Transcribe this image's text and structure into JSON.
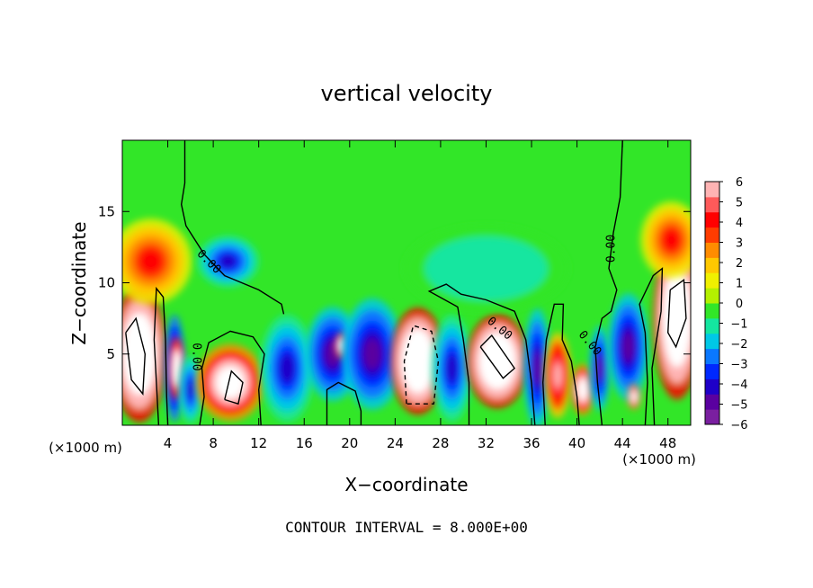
{
  "chart_data": {
    "type": "heatmap",
    "title": "vertical velocity",
    "xlabel": "X−coordinate",
    "ylabel": "Z−coordinate",
    "x_unit_left": "(×1000 m)",
    "x_unit_right": "(×1000 m)",
    "xlim": [
      0,
      50
    ],
    "ylim": [
      0,
      20
    ],
    "x_ticks": [
      4,
      8,
      12,
      16,
      20,
      24,
      28,
      32,
      36,
      40,
      44,
      48
    ],
    "y_ticks": [
      5,
      10,
      15
    ],
    "colorbar": {
      "range": [
        -6,
        6
      ],
      "ticks": [
        "6",
        "5",
        "4",
        "3",
        "2",
        "1",
        "0",
        "−1",
        "−2",
        "−3",
        "−4",
        "−5",
        "−6"
      ],
      "colors": [
        "#7a1fa0",
        "#5a00a0",
        "#1e00c8",
        "#0028ff",
        "#0a78ff",
        "#00c8e6",
        "#14e6a0",
        "#32e628",
        "#b4f000",
        "#f0f000",
        "#ffc800",
        "#ff8c00",
        "#ff3c00",
        "#ff0000",
        "#ff5a5a",
        "#ffb4b4"
      ]
    },
    "contour_labels": [
      "0.00",
      "0.00",
      "0.00",
      "0.00",
      "0.00"
    ],
    "features": [
      {
        "x": 1.5,
        "z": 5.0,
        "sx": 1.6,
        "sz": 3.2,
        "w": 12
      },
      {
        "x": 2.5,
        "z": 11.5,
        "sx": 2.4,
        "sz": 2.0,
        "w": 4
      },
      {
        "x": 4.6,
        "z": 4.0,
        "sx": 0.6,
        "sz": 2.5,
        "w": -7
      },
      {
        "x": 4.8,
        "z": 4.0,
        "sx": 0.45,
        "sz": 1.4,
        "w": 10
      },
      {
        "x": 6.0,
        "z": 2.5,
        "sx": 0.7,
        "sz": 1.6,
        "w": -4
      },
      {
        "x": 9.5,
        "z": 3.0,
        "sx": 2.0,
        "sz": 1.8,
        "w": 8
      },
      {
        "x": 9.3,
        "z": 11.5,
        "sx": 1.8,
        "sz": 1.2,
        "w": -4
      },
      {
        "x": 14.5,
        "z": 4.0,
        "sx": 1.6,
        "sz": 2.5,
        "w": -4
      },
      {
        "x": 18.5,
        "z": 5.0,
        "sx": 1.6,
        "sz": 2.2,
        "w": -5
      },
      {
        "x": 19.3,
        "z": 5.6,
        "sx": 0.4,
        "sz": 0.6,
        "w": 8
      },
      {
        "x": 22.0,
        "z": 5.0,
        "sx": 1.8,
        "sz": 2.6,
        "w": -5
      },
      {
        "x": 26.0,
        "z": 4.5,
        "sx": 1.6,
        "sz": 2.5,
        "w": 11
      },
      {
        "x": 29.0,
        "z": 4.0,
        "sx": 1.2,
        "sz": 2.5,
        "w": -4
      },
      {
        "x": 33.0,
        "z": 4.5,
        "sx": 1.8,
        "sz": 2.2,
        "w": 11
      },
      {
        "x": 36.5,
        "z": 4.0,
        "sx": 0.8,
        "sz": 2.8,
        "w": -5
      },
      {
        "x": 38.3,
        "z": 3.5,
        "sx": 0.8,
        "sz": 2.0,
        "w": 6
      },
      {
        "x": 40.5,
        "z": 2.5,
        "sx": 0.7,
        "sz": 1.2,
        "w": 8
      },
      {
        "x": 42.0,
        "z": 4.0,
        "sx": 0.6,
        "sz": 2.0,
        "w": -5
      },
      {
        "x": 44.5,
        "z": 5.5,
        "sx": 1.2,
        "sz": 2.5,
        "w": -5
      },
      {
        "x": 45.0,
        "z": 2.0,
        "sx": 0.4,
        "sz": 0.6,
        "w": 8
      },
      {
        "x": 48.8,
        "z": 7.5,
        "sx": 1.4,
        "sz": 3.8,
        "w": 12
      },
      {
        "x": 48.3,
        "z": 13.0,
        "sx": 1.8,
        "sz": 1.8,
        "w": 4
      },
      {
        "x": 32.0,
        "z": 11.0,
        "sx": 6.0,
        "sz": 2.5,
        "w": -1.2
      },
      {
        "x": 25.0,
        "z": 17.0,
        "sx": 10.0,
        "sz": 3.0,
        "w": 0.3
      }
    ]
  },
  "footer": {
    "contour_interval": "CONTOUR INTERVAL = 8.000E+00"
  }
}
